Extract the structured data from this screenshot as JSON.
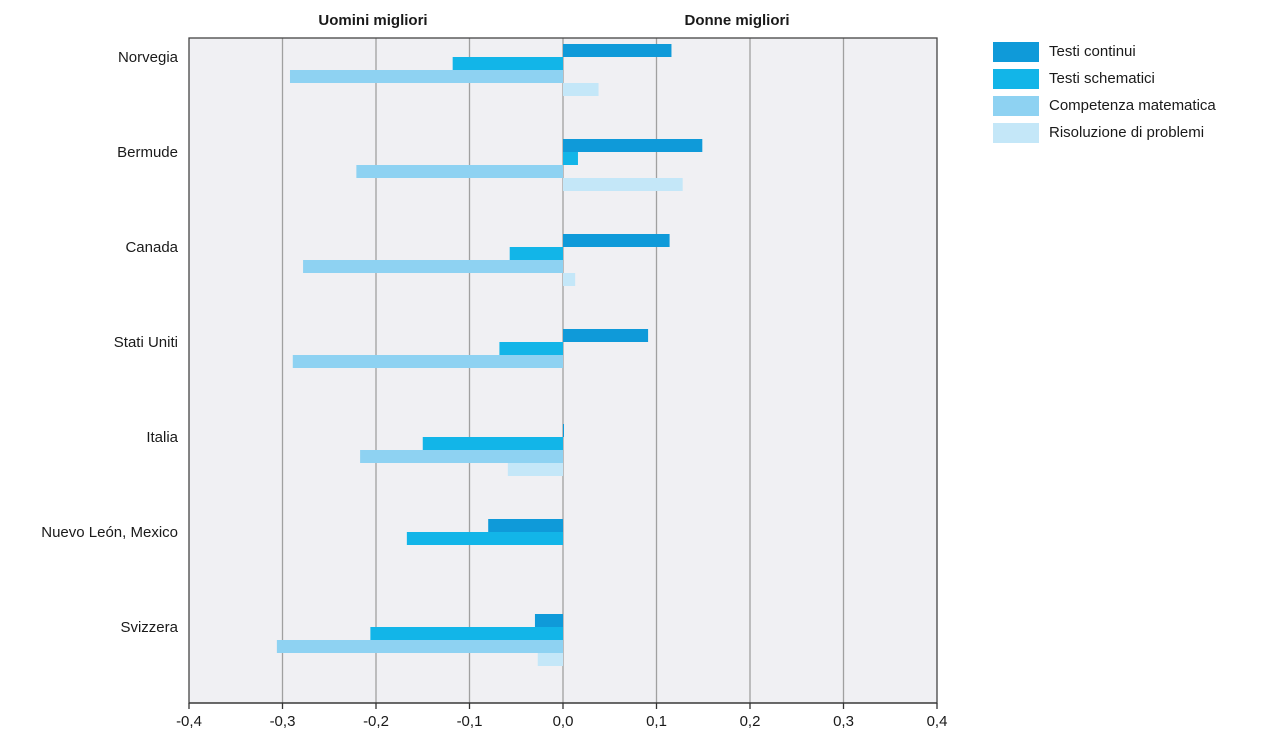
{
  "chart_data": {
    "type": "bar",
    "orientation": "horizontal",
    "side_labels": {
      "left": "Uomini migliori",
      "right": "Donne migliori"
    },
    "categories": [
      "Norvegia",
      "Bermude",
      "Canada",
      "Stati Uniti",
      "Italia",
      "Nuevo León, Mexico",
      "Svizzera"
    ],
    "series": [
      {
        "name": "Testi continui",
        "color": "#0f9ad9",
        "values": [
          0.116,
          0.149,
          0.114,
          0.091,
          0.001,
          -0.08,
          -0.03
        ]
      },
      {
        "name": "Testi schematici",
        "color": "#12b5e8",
        "values": [
          -0.118,
          0.016,
          -0.057,
          -0.068,
          -0.15,
          -0.167,
          -0.206
        ]
      },
      {
        "name": "Competenza matematica",
        "color": "#8ed2f2",
        "values": [
          -0.292,
          -0.221,
          -0.278,
          -0.289,
          -0.217,
          null,
          -0.306
        ]
      },
      {
        "name": "Risoluzione di problemi",
        "color": "#c4e7f8",
        "values": [
          0.038,
          0.128,
          0.013,
          null,
          -0.059,
          null,
          -0.027
        ]
      }
    ],
    "xlim": [
      -0.4,
      0.4
    ],
    "xticks": [
      -0.4,
      -0.3,
      -0.2,
      -0.1,
      0.0,
      0.1,
      0.2,
      0.3,
      0.4
    ],
    "xtick_labels": [
      "-0,4",
      "-0,3",
      "-0,2",
      "-0,1",
      "0,0",
      "0,1",
      "0,2",
      "0,3",
      "0,4"
    ],
    "grid": true,
    "legend_position": "top-right",
    "plot_background": "#f0f0f3",
    "grid_color": "#a0a0a0"
  }
}
